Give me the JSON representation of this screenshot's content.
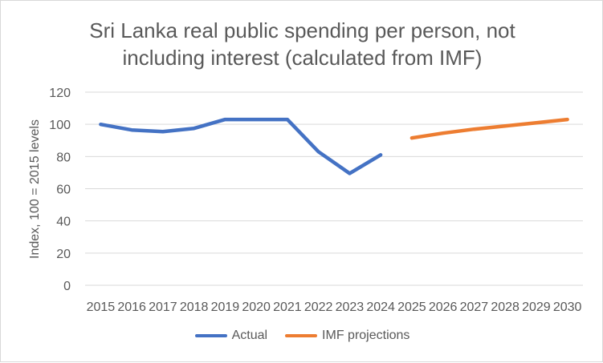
{
  "chart_data": {
    "type": "line",
    "title_line1": "Sri Lanka real public spending per person, not",
    "title_line2": "including interest (calculated from IMF)",
    "xlabel": "",
    "ylabel": "Index, 100 = 2015 levels",
    "ylim": [
      0,
      120
    ],
    "yticks": [
      0,
      20,
      40,
      60,
      80,
      100,
      120
    ],
    "grid": true,
    "legend_position": "bottom",
    "categories": [
      "2015",
      "2016",
      "2017",
      "2018",
      "2019",
      "2020",
      "2021",
      "2022",
      "2023",
      "2024",
      "2025",
      "2026",
      "2027",
      "2028",
      "2029",
      "2030"
    ],
    "series": [
      {
        "name": "Actual",
        "color": "#4472c4",
        "values": [
          100,
          96.5,
          95.5,
          97.5,
          103,
          103,
          103,
          83,
          69.5,
          81,
          null,
          null,
          null,
          null,
          null,
          null
        ]
      },
      {
        "name": "IMF projections",
        "color": "#ed7d31",
        "values": [
          null,
          null,
          null,
          null,
          null,
          null,
          null,
          null,
          null,
          null,
          91.5,
          94.5,
          97,
          99,
          101,
          103
        ]
      }
    ]
  }
}
